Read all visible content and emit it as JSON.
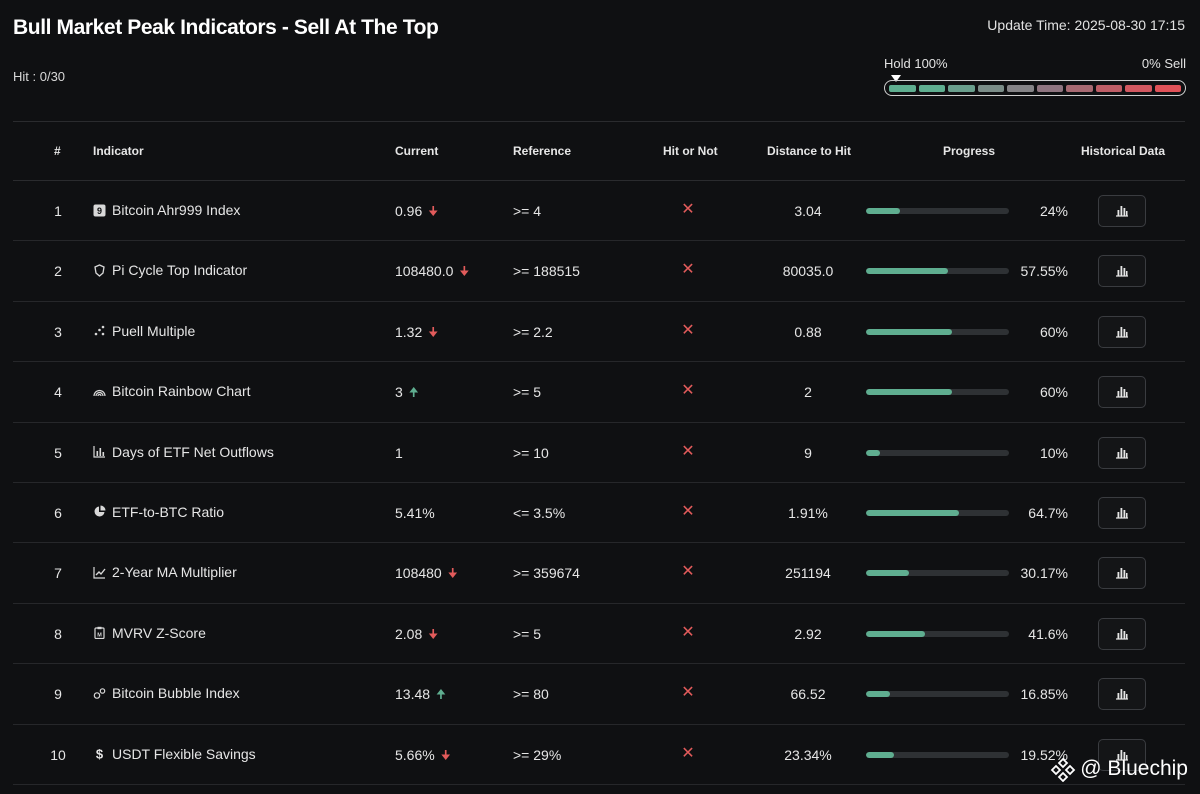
{
  "header": {
    "title": "Bull Market Peak Indicators - Sell At The Top",
    "update_time": "Update Time: 2025-08-30 17:15",
    "hit_count": "Hit : 0/30"
  },
  "meter": {
    "hold_label": "Hold 100%",
    "sell_label": "0% Sell",
    "segment_colors": [
      "#5fae90",
      "#5fae90",
      "#6a9f8d",
      "#7b8d88",
      "#858487",
      "#8f7580",
      "#a86a72",
      "#bf5e66",
      "#d25860",
      "#e05258"
    ]
  },
  "columns": {
    "num": "#",
    "indicator": "Indicator",
    "current": "Current",
    "reference": "Reference",
    "hit": "Hit or Not",
    "distance": "Distance to Hit",
    "progress": "Progress",
    "history": "Historical Data"
  },
  "colors": {
    "positive": "#5fae90",
    "negative": "#e25b5b",
    "background": "#0f1012"
  },
  "rows": [
    {
      "num": "1",
      "icon": "nine-icon",
      "name": "Bitcoin Ahr999 Index",
      "current": "0.96",
      "trend": "down",
      "reference": ">= 4",
      "hit": "✕",
      "distance": "3.04",
      "progress": 24,
      "progress_label": "24%"
    },
    {
      "num": "2",
      "icon": "pi-cycle-icon",
      "name": "Pi Cycle Top Indicator",
      "current": "108480.0",
      "trend": "down",
      "reference": ">= 188515",
      "hit": "✕",
      "distance": "80035.0",
      "progress": 57.55,
      "progress_label": "57.55%"
    },
    {
      "num": "3",
      "icon": "puell-icon",
      "name": "Puell Multiple",
      "current": "1.32",
      "trend": "down",
      "reference": ">= 2.2",
      "hit": "✕",
      "distance": "0.88",
      "progress": 60,
      "progress_label": "60%"
    },
    {
      "num": "4",
      "icon": "rainbow-icon",
      "name": "Bitcoin Rainbow Chart",
      "current": "3",
      "trend": "up",
      "reference": ">= 5",
      "hit": "✕",
      "distance": "2",
      "progress": 60,
      "progress_label": "60%"
    },
    {
      "num": "5",
      "icon": "bar-chart-icon",
      "name": "Days of ETF Net Outflows",
      "current": "1",
      "trend": "",
      "reference": ">= 10",
      "hit": "✕",
      "distance": "9",
      "progress": 10,
      "progress_label": "10%"
    },
    {
      "num": "6",
      "icon": "pie-chart-icon",
      "name": "ETF-to-BTC Ratio",
      "current": "5.41%",
      "trend": "",
      "reference": "<= 3.5%",
      "hit": "✕",
      "distance": "1.91%",
      "progress": 64.7,
      "progress_label": "64.7%"
    },
    {
      "num": "7",
      "icon": "line-chart-icon",
      "name": "2-Year MA Multiplier",
      "current": "108480",
      "trend": "down",
      "reference": ">= 359674",
      "hit": "✕",
      "distance": "251194",
      "progress": 30.17,
      "progress_label": "30.17%"
    },
    {
      "num": "8",
      "icon": "clipboard-icon",
      "name": "MVRV Z-Score",
      "current": "2.08",
      "trend": "down",
      "reference": ">= 5",
      "hit": "✕",
      "distance": "2.92",
      "progress": 41.6,
      "progress_label": "41.6%"
    },
    {
      "num": "9",
      "icon": "bubble-icon",
      "name": "Bitcoin Bubble Index",
      "current": "13.48",
      "trend": "up",
      "reference": ">= 80",
      "hit": "✕",
      "distance": "66.52",
      "progress": 16.85,
      "progress_label": "16.85%"
    },
    {
      "num": "10",
      "icon": "dollar-icon",
      "name": "USDT Flexible Savings",
      "current": "5.66%",
      "trend": "down",
      "reference": ">= 29%",
      "hit": "✕",
      "distance": "23.34%",
      "progress": 19.52,
      "progress_label": "19.52%"
    }
  ],
  "watermark": {
    "text": "@ Bluechip",
    "icon": "binance-icon"
  }
}
